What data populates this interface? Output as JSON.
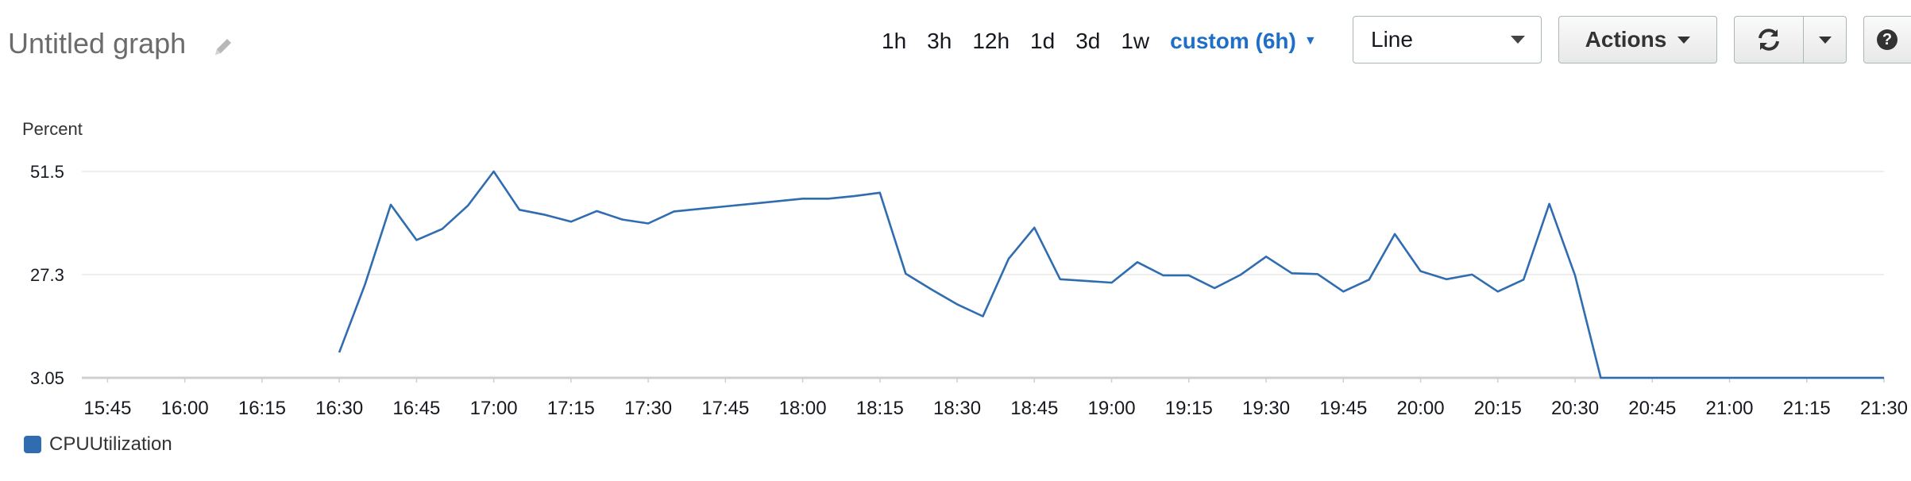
{
  "header": {
    "title": "Untitled graph",
    "ranges": [
      "1h",
      "3h",
      "12h",
      "1d",
      "3d",
      "1w"
    ],
    "custom_range": "custom (6h)",
    "view_select": "Line",
    "actions_label": "Actions",
    "help_label": "?"
  },
  "colors": {
    "series": "#2f6db0",
    "accent": "#1f6fc7"
  },
  "chart_data": {
    "type": "line",
    "ylabel": "Percent",
    "yticks": [
      3.05,
      27.3,
      51.5
    ],
    "ylim": [
      3.05,
      51.5
    ],
    "xlim": [
      "15:40",
      "21:30"
    ],
    "xticks": [
      "15:45",
      "16:00",
      "16:15",
      "16:30",
      "16:45",
      "17:00",
      "17:15",
      "17:30",
      "17:45",
      "18:00",
      "18:15",
      "18:30",
      "18:45",
      "19:00",
      "19:15",
      "19:30",
      "19:45",
      "20:00",
      "20:15",
      "20:30",
      "20:45",
      "21:00",
      "21:15",
      "21:30"
    ],
    "grid": true,
    "legend": "bottom-left",
    "series": [
      {
        "name": "CPUUtilization",
        "x": [
          "16:30",
          "16:35",
          "16:40",
          "16:45",
          "16:50",
          "16:55",
          "17:00",
          "17:05",
          "17:10",
          "17:15",
          "17:20",
          "17:25",
          "17:30",
          "17:35",
          "17:40",
          "17:45",
          "17:50",
          "17:55",
          "18:00",
          "18:05",
          "18:10",
          "18:15",
          "18:20",
          "18:25",
          "18:30",
          "18:35",
          "18:40",
          "18:45",
          "18:50",
          "18:55",
          "19:00",
          "19:05",
          "19:10",
          "19:15",
          "19:20",
          "19:25",
          "19:30",
          "19:35",
          "19:40",
          "19:45",
          "19:50",
          "19:55",
          "20:00",
          "20:05",
          "20:10",
          "20:15",
          "20:20",
          "20:25",
          "20:30",
          "20:35",
          "20:40",
          "20:45",
          "20:50",
          "20:55",
          "21:00",
          "21:05",
          "21:10",
          "21:15",
          "21:20",
          "21:25",
          "21:30"
        ],
        "values": [
          9.0,
          25.0,
          43.7,
          35.4,
          38.0,
          43.5,
          51.5,
          42.5,
          41.3,
          39.7,
          42.2,
          40.2,
          39.3,
          42.1,
          42.7,
          43.3,
          43.9,
          44.5,
          45.1,
          45.1,
          45.7,
          46.5,
          27.5,
          23.8,
          20.3,
          17.5,
          31.0,
          38.3,
          26.2,
          25.8,
          25.4,
          30.2,
          27.1,
          27.1,
          24.1,
          27.2,
          31.5,
          27.6,
          27.4,
          23.3,
          26.1,
          36.8,
          28.1,
          26.2,
          27.3,
          23.3,
          26.1,
          43.9,
          27.1,
          3.05,
          3.05,
          3.05,
          3.05,
          3.05,
          3.05,
          3.05,
          3.05,
          3.05,
          3.05,
          3.05,
          3.05
        ]
      }
    ]
  }
}
